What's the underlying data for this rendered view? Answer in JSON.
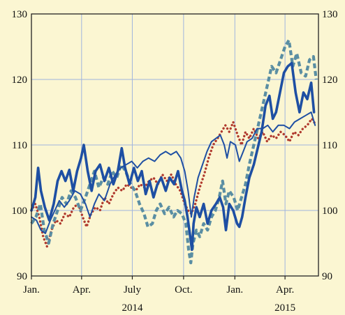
{
  "chart_data": {
    "type": "line",
    "ylim": [
      90,
      130
    ],
    "yticks": [
      90,
      100,
      110,
      120,
      130
    ],
    "xlim": [
      "2014-01-01",
      "2015-05-31"
    ],
    "xticks": [
      {
        "date": "2014-01-01",
        "label": "Jan."
      },
      {
        "date": "2014-04-01",
        "label": "Apr."
      },
      {
        "date": "2014-07-01",
        "label": "July"
      },
      {
        "date": "2014-10-01",
        "label": "Oct."
      },
      {
        "date": "2015-01-01",
        "label": "Jan."
      },
      {
        "date": "2015-04-01",
        "label": "Apr."
      }
    ],
    "year_labels": [
      {
        "date": "2014-07-01",
        "label": "2014"
      },
      {
        "date": "2015-04-01",
        "label": "2015"
      }
    ],
    "grid": true,
    "colors": {
      "background": "#fbf6d2",
      "grid": "#9fb4de",
      "frame": "#222222"
    },
    "series": [
      {
        "style": "thick-solid",
        "color": "#1e4fa3",
        "points": [
          [
            "2014-01-01",
            100
          ],
          [
            "2014-01-08",
            102
          ],
          [
            "2014-01-13",
            106.5
          ],
          [
            "2014-01-18",
            103
          ],
          [
            "2014-01-25",
            100.5
          ],
          [
            "2014-02-02",
            98.5
          ],
          [
            "2014-02-10",
            101
          ],
          [
            "2014-02-17",
            104.5
          ],
          [
            "2014-02-24",
            106
          ],
          [
            "2014-03-03",
            104.5
          ],
          [
            "2014-03-10",
            106.2
          ],
          [
            "2014-03-17",
            103
          ],
          [
            "2014-03-24",
            106
          ],
          [
            "2014-03-31",
            108
          ],
          [
            "2014-04-05",
            110
          ],
          [
            "2014-04-12",
            106
          ],
          [
            "2014-04-19",
            103
          ],
          [
            "2014-04-26",
            106
          ],
          [
            "2014-05-04",
            107
          ],
          [
            "2014-05-12",
            104.5
          ],
          [
            "2014-05-20",
            106.5
          ],
          [
            "2014-05-28",
            104
          ],
          [
            "2014-06-05",
            106
          ],
          [
            "2014-06-12",
            109.5
          ],
          [
            "2014-06-18",
            106.5
          ],
          [
            "2014-06-26",
            104
          ],
          [
            "2014-07-04",
            106.5
          ],
          [
            "2014-07-11",
            104.5
          ],
          [
            "2014-07-18",
            106
          ],
          [
            "2014-07-25",
            102.5
          ],
          [
            "2014-08-01",
            104.5
          ],
          [
            "2014-08-08",
            102
          ],
          [
            "2014-08-15",
            104
          ],
          [
            "2014-08-22",
            105
          ],
          [
            "2014-08-30",
            103
          ],
          [
            "2014-09-06",
            105
          ],
          [
            "2014-09-14",
            104
          ],
          [
            "2014-09-21",
            106
          ],
          [
            "2014-09-28",
            103
          ],
          [
            "2014-10-03",
            101.5
          ],
          [
            "2014-10-08",
            99
          ],
          [
            "2014-10-13",
            96
          ],
          [
            "2014-10-16",
            94
          ],
          [
            "2014-10-19",
            98
          ],
          [
            "2014-10-24",
            100.5
          ],
          [
            "2014-10-30",
            99
          ],
          [
            "2014-11-06",
            101
          ],
          [
            "2014-11-13",
            98
          ],
          [
            "2014-11-20",
            100
          ],
          [
            "2014-11-28",
            101
          ],
          [
            "2014-12-05",
            102
          ],
          [
            "2014-12-11",
            100.5
          ],
          [
            "2014-12-16",
            97
          ],
          [
            "2014-12-22",
            101
          ],
          [
            "2014-12-29",
            100
          ],
          [
            "2015-01-05",
            98
          ],
          [
            "2015-01-09",
            97.5
          ],
          [
            "2015-01-14",
            99
          ],
          [
            "2015-01-20",
            102
          ],
          [
            "2015-01-27",
            105
          ],
          [
            "2015-02-04",
            107
          ],
          [
            "2015-02-11",
            109.5
          ],
          [
            "2015-02-18",
            112
          ],
          [
            "2015-02-25",
            116
          ],
          [
            "2015-03-04",
            117.5
          ],
          [
            "2015-03-10",
            114
          ],
          [
            "2015-03-16",
            115
          ],
          [
            "2015-03-23",
            118
          ],
          [
            "2015-03-30",
            121
          ],
          [
            "2015-04-06",
            122
          ],
          [
            "2015-04-13",
            122.5
          ],
          [
            "2015-04-20",
            118
          ],
          [
            "2015-04-27",
            115
          ],
          [
            "2015-05-04",
            118
          ],
          [
            "2015-05-11",
            117
          ],
          [
            "2015-05-18",
            119.5
          ],
          [
            "2015-05-23",
            115
          ]
        ]
      },
      {
        "style": "thin-solid",
        "color": "#1e4fa3",
        "points": [
          [
            "2014-01-01",
            99
          ],
          [
            "2014-01-10",
            98.5
          ],
          [
            "2014-01-18",
            97
          ],
          [
            "2014-01-26",
            96.5
          ],
          [
            "2014-02-04",
            98.5
          ],
          [
            "2014-02-12",
            100
          ],
          [
            "2014-02-20",
            101.5
          ],
          [
            "2014-03-01",
            100.5
          ],
          [
            "2014-03-10",
            101.5
          ],
          [
            "2014-03-20",
            103
          ],
          [
            "2014-03-30",
            102.5
          ],
          [
            "2014-04-08",
            101
          ],
          [
            "2014-04-16",
            99
          ],
          [
            "2014-04-24",
            101
          ],
          [
            "2014-05-02",
            102.5
          ],
          [
            "2014-05-12",
            101.5
          ],
          [
            "2014-05-22",
            104
          ],
          [
            "2014-06-01",
            105.5
          ],
          [
            "2014-06-10",
            106.5
          ],
          [
            "2014-06-20",
            107
          ],
          [
            "2014-06-30",
            107.5
          ],
          [
            "2014-07-10",
            106.5
          ],
          [
            "2014-07-20",
            107.5
          ],
          [
            "2014-07-30",
            108
          ],
          [
            "2014-08-10",
            107.5
          ],
          [
            "2014-08-20",
            108.5
          ],
          [
            "2014-08-30",
            109
          ],
          [
            "2014-09-08",
            108.5
          ],
          [
            "2014-09-18",
            109
          ],
          [
            "2014-09-26",
            108
          ],
          [
            "2014-10-03",
            106
          ],
          [
            "2014-10-09",
            103
          ],
          [
            "2014-10-15",
            99
          ],
          [
            "2014-10-20",
            102
          ],
          [
            "2014-10-27",
            105
          ],
          [
            "2014-11-04",
            107
          ],
          [
            "2014-11-12",
            109
          ],
          [
            "2014-11-20",
            110.5
          ],
          [
            "2014-11-28",
            111
          ],
          [
            "2014-12-06",
            111.5
          ],
          [
            "2014-12-13",
            110
          ],
          [
            "2014-12-18",
            108
          ],
          [
            "2014-12-24",
            110.5
          ],
          [
            "2015-01-02",
            110
          ],
          [
            "2015-01-09",
            107.5
          ],
          [
            "2015-01-16",
            109
          ],
          [
            "2015-01-23",
            110.5
          ],
          [
            "2015-02-01",
            111
          ],
          [
            "2015-02-10",
            112.5
          ],
          [
            "2015-02-20",
            112.5
          ],
          [
            "2015-03-01",
            113
          ],
          [
            "2015-03-10",
            112
          ],
          [
            "2015-03-20",
            113
          ],
          [
            "2015-03-30",
            113
          ],
          [
            "2015-04-09",
            112.5
          ],
          [
            "2015-04-18",
            113.5
          ],
          [
            "2015-04-28",
            114
          ],
          [
            "2015-05-08",
            114.5
          ],
          [
            "2015-05-18",
            115
          ],
          [
            "2015-05-25",
            113
          ]
        ]
      },
      {
        "style": "dashed",
        "color": "#5a8ea3",
        "points": [
          [
            "2014-01-01",
            98
          ],
          [
            "2014-01-09",
            99
          ],
          [
            "2014-01-17",
            101
          ],
          [
            "2014-01-24",
            97
          ],
          [
            "2014-02-01",
            95
          ],
          [
            "2014-02-09",
            98
          ],
          [
            "2014-02-17",
            100
          ],
          [
            "2014-02-25",
            102
          ],
          [
            "2014-03-05",
            101
          ],
          [
            "2014-03-13",
            103
          ],
          [
            "2014-03-21",
            102
          ],
          [
            "2014-03-30",
            100
          ],
          [
            "2014-04-08",
            102
          ],
          [
            "2014-04-16",
            104
          ],
          [
            "2014-04-24",
            106
          ],
          [
            "2014-05-02",
            103.5
          ],
          [
            "2014-05-10",
            105
          ],
          [
            "2014-05-18",
            104
          ],
          [
            "2014-05-26",
            106
          ],
          [
            "2014-06-03",
            105
          ],
          [
            "2014-06-11",
            107
          ],
          [
            "2014-06-19",
            106
          ],
          [
            "2014-06-28",
            104
          ],
          [
            "2014-07-06",
            103
          ],
          [
            "2014-07-14",
            101
          ],
          [
            "2014-07-22",
            99.5
          ],
          [
            "2014-07-29",
            97.5
          ],
          [
            "2014-08-06",
            98
          ],
          [
            "2014-08-13",
            100
          ],
          [
            "2014-08-20",
            101
          ],
          [
            "2014-08-28",
            99.5
          ],
          [
            "2014-09-05",
            100.5
          ],
          [
            "2014-09-13",
            99
          ],
          [
            "2014-09-20",
            100
          ],
          [
            "2014-09-28",
            99.5
          ],
          [
            "2014-10-05",
            98
          ],
          [
            "2014-10-10",
            94
          ],
          [
            "2014-10-14",
            92
          ],
          [
            "2014-10-18",
            95
          ],
          [
            "2014-10-24",
            97
          ],
          [
            "2014-10-30",
            96
          ],
          [
            "2014-11-06",
            98
          ],
          [
            "2014-11-13",
            97
          ],
          [
            "2014-11-20",
            99
          ],
          [
            "2014-11-27",
            100
          ],
          [
            "2014-12-04",
            102
          ],
          [
            "2014-12-10",
            104.5
          ],
          [
            "2014-12-16",
            101
          ],
          [
            "2014-12-22",
            103
          ],
          [
            "2014-12-30",
            102
          ],
          [
            "2015-01-06",
            100
          ],
          [
            "2015-01-13",
            102
          ],
          [
            "2015-01-20",
            104
          ],
          [
            "2015-01-27",
            107
          ],
          [
            "2015-02-04",
            110
          ],
          [
            "2015-02-12",
            113
          ],
          [
            "2015-02-20",
            116
          ],
          [
            "2015-02-28",
            119
          ],
          [
            "2015-03-08",
            122
          ],
          [
            "2015-03-16",
            121
          ],
          [
            "2015-03-24",
            123
          ],
          [
            "2015-04-01",
            125
          ],
          [
            "2015-04-08",
            126
          ],
          [
            "2015-04-15",
            122
          ],
          [
            "2015-04-22",
            124
          ],
          [
            "2015-04-30",
            121
          ],
          [
            "2015-05-08",
            120.5
          ],
          [
            "2015-05-15",
            123
          ],
          [
            "2015-05-22",
            123.5
          ],
          [
            "2015-05-27",
            120
          ]
        ]
      },
      {
        "style": "dotted",
        "color": "#b03a2e",
        "points": [
          [
            "2014-01-01",
            100
          ],
          [
            "2014-01-08",
            101
          ],
          [
            "2014-01-15",
            99
          ],
          [
            "2014-01-22",
            96
          ],
          [
            "2014-01-29",
            94.5
          ],
          [
            "2014-02-06",
            97
          ],
          [
            "2014-02-14",
            98.5
          ],
          [
            "2014-02-22",
            98
          ],
          [
            "2014-03-02",
            99.5
          ],
          [
            "2014-03-10",
            99
          ],
          [
            "2014-03-18",
            100.5
          ],
          [
            "2014-03-26",
            101
          ],
          [
            "2014-04-03",
            99
          ],
          [
            "2014-04-10",
            97.5
          ],
          [
            "2014-04-18",
            99.5
          ],
          [
            "2014-04-26",
            100.5
          ],
          [
            "2014-05-04",
            100
          ],
          [
            "2014-05-12",
            102
          ],
          [
            "2014-05-20",
            101
          ],
          [
            "2014-05-28",
            102.5
          ],
          [
            "2014-06-05",
            103.5
          ],
          [
            "2014-06-13",
            103
          ],
          [
            "2014-06-21",
            104
          ],
          [
            "2014-06-29",
            103.5
          ],
          [
            "2014-07-07",
            103
          ],
          [
            "2014-07-15",
            104
          ],
          [
            "2014-07-23",
            103.5
          ],
          [
            "2014-07-31",
            104.5
          ],
          [
            "2014-08-08",
            105
          ],
          [
            "2014-08-16",
            104
          ],
          [
            "2014-08-24",
            105.5
          ],
          [
            "2014-09-01",
            104.5
          ],
          [
            "2014-09-09",
            105.5
          ],
          [
            "2014-09-17",
            104
          ],
          [
            "2014-09-25",
            103
          ],
          [
            "2014-10-03",
            101
          ],
          [
            "2014-10-09",
            100
          ],
          [
            "2014-10-15",
            99.5
          ],
          [
            "2014-10-22",
            101
          ],
          [
            "2014-10-30",
            103.5
          ],
          [
            "2014-11-07",
            105.5
          ],
          [
            "2014-11-15",
            108
          ],
          [
            "2014-11-23",
            110
          ],
          [
            "2014-12-01",
            111
          ],
          [
            "2014-12-08",
            112
          ],
          [
            "2014-12-15",
            113
          ],
          [
            "2014-12-22",
            112
          ],
          [
            "2014-12-29",
            113.5
          ],
          [
            "2015-01-06",
            111.5
          ],
          [
            "2015-01-13",
            110
          ],
          [
            "2015-01-20",
            112
          ],
          [
            "2015-01-27",
            111
          ],
          [
            "2015-02-04",
            112.5
          ],
          [
            "2015-02-12",
            111
          ],
          [
            "2015-02-20",
            112
          ],
          [
            "2015-02-28",
            110.5
          ],
          [
            "2015-03-08",
            111.5
          ],
          [
            "2015-03-16",
            111
          ],
          [
            "2015-03-24",
            112
          ],
          [
            "2015-04-01",
            111.5
          ],
          [
            "2015-04-09",
            110.5
          ],
          [
            "2015-04-17",
            112
          ],
          [
            "2015-04-25",
            111.5
          ],
          [
            "2015-05-03",
            112.5
          ],
          [
            "2015-05-11",
            113
          ],
          [
            "2015-05-19",
            114
          ],
          [
            "2015-05-27",
            113
          ]
        ]
      }
    ]
  }
}
